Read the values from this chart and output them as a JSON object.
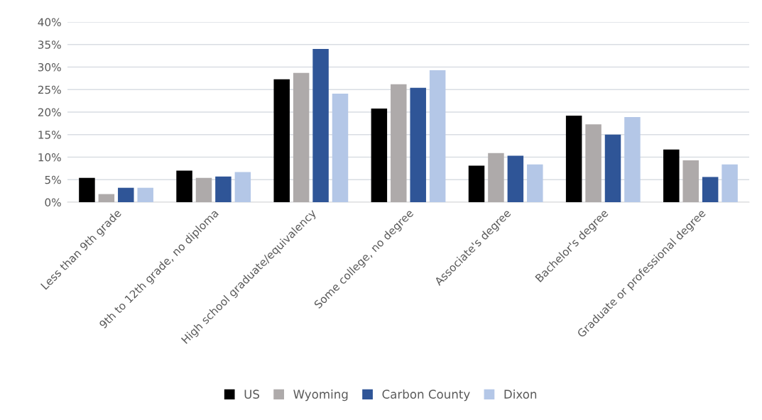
{
  "chart_data": {
    "type": "bar",
    "categories": [
      "Less than 9th grade",
      "9th to 12th grade, no diploma",
      "High school graduate/equivalency",
      "Some college, no degree",
      "Associate's degree",
      "Bachelor's degree",
      "Graduate or professional degree"
    ],
    "series": [
      {
        "name": "US",
        "color": "#000000",
        "values": [
          5.4,
          7.0,
          27.3,
          20.8,
          8.1,
          19.2,
          11.7
        ]
      },
      {
        "name": "Wyoming",
        "color": "#aeaaaa",
        "values": [
          1.8,
          5.4,
          28.7,
          26.2,
          10.9,
          17.3,
          9.3
        ]
      },
      {
        "name": "Carbon County",
        "color": "#2f5597",
        "values": [
          3.2,
          5.7,
          34.0,
          25.4,
          10.3,
          15.0,
          5.6
        ]
      },
      {
        "name": "Dixon",
        "color": "#b4c7e7",
        "values": [
          3.2,
          6.7,
          24.1,
          29.3,
          8.4,
          18.9,
          8.4
        ]
      }
    ],
    "ylim": [
      0,
      40
    ],
    "yticks": [
      {
        "value": 0,
        "label": "0%"
      },
      {
        "value": 5,
        "label": "5%"
      },
      {
        "value": 10,
        "label": "10%"
      },
      {
        "value": 15,
        "label": "15%"
      },
      {
        "value": 20,
        "label": "20%"
      },
      {
        "value": 25,
        "label": "25%"
      },
      {
        "value": 30,
        "label": "30%"
      },
      {
        "value": 35,
        "label": "35%"
      },
      {
        "value": 40,
        "label": "40%"
      }
    ],
    "grid": "y",
    "legend": "bottom"
  }
}
